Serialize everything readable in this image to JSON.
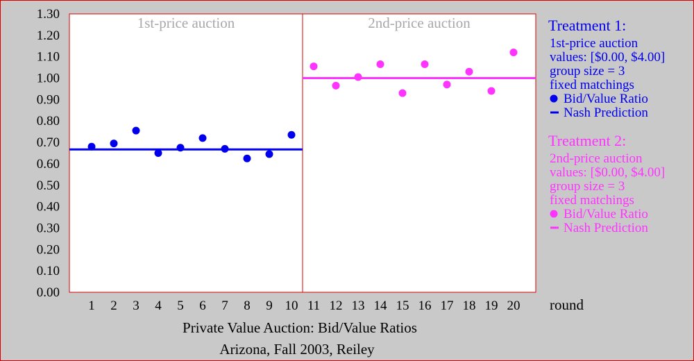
{
  "chart_data": {
    "type": "scatter",
    "title": "Private Value Auction: Bid/Value Ratios",
    "subtitle": "Arizona, Fall 2003, Reiley",
    "xlabel": "round",
    "ylabel": "",
    "ylim": [
      0,
      1.3
    ],
    "yticks": [
      "0.00",
      "0.10",
      "0.20",
      "0.30",
      "0.40",
      "0.50",
      "0.60",
      "0.70",
      "0.80",
      "0.90",
      "1.00",
      "1.10",
      "1.20",
      "1.30"
    ],
    "xticks": [
      "1",
      "2",
      "3",
      "4",
      "5",
      "6",
      "7",
      "8",
      "9",
      "10",
      "11",
      "12",
      "13",
      "14",
      "15",
      "16",
      "17",
      "18",
      "19",
      "20"
    ],
    "grid": false,
    "legend_position": "right",
    "panels": [
      {
        "title": "1st-price auction",
        "rounds": [
          1,
          10
        ]
      },
      {
        "title": "2nd-price auction",
        "rounds": [
          11,
          20
        ]
      }
    ],
    "series": [
      {
        "name": "Bid/Value Ratio",
        "treatment": 1,
        "color": "#0000ee",
        "x": [
          1,
          2,
          3,
          4,
          5,
          6,
          7,
          8,
          9,
          10
        ],
        "y": [
          0.68,
          0.695,
          0.755,
          0.65,
          0.675,
          0.72,
          0.67,
          0.625,
          0.645,
          0.735
        ]
      },
      {
        "name": "Bid/Value Ratio",
        "treatment": 2,
        "color": "#ff33ff",
        "x": [
          11,
          12,
          13,
          14,
          15,
          16,
          17,
          18,
          19,
          20
        ],
        "y": [
          1.055,
          0.965,
          1.005,
          1.065,
          0.93,
          1.065,
          0.97,
          1.03,
          0.94,
          1.12
        ]
      }
    ],
    "nash": [
      {
        "name": "Nash Prediction",
        "treatment": 1,
        "color": "#0000ee",
        "value": 0.667,
        "rounds": [
          1,
          10
        ]
      },
      {
        "name": "Nash Prediction",
        "treatment": 2,
        "color": "#ff33ff",
        "value": 1.0,
        "rounds": [
          11,
          20
        ]
      }
    ]
  },
  "legend": [
    {
      "title": "Treatment 1:",
      "color": "#0000ee",
      "lines": [
        "1st-price auction",
        "values: [$0.00, $4.00]",
        "group size = 3",
        "fixed matchings"
      ],
      "dot_label": "Bid/Value Ratio",
      "line_label": "Nash Prediction"
    },
    {
      "title": "Treatment 2:",
      "color": "#ff33ff",
      "lines": [
        "2nd-price auction",
        "values: [$0.00, $4.00]",
        "group size = 3",
        "fixed matchings"
      ],
      "dot_label": "Bid/Value Ratio",
      "line_label": "Nash Prediction"
    }
  ]
}
